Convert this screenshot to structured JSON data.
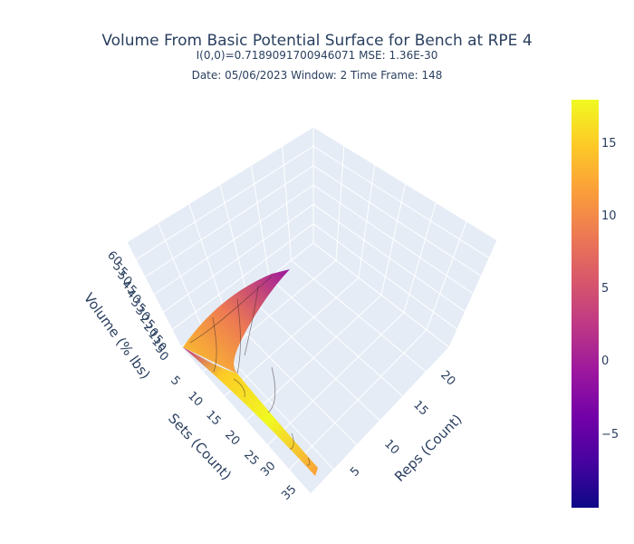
{
  "chart_data": {
    "type": "surface",
    "title": "Volume From Basic Potential Surface for Bench at RPE 4",
    "subtitle_line1": "I(0,0)=0.7189091700946071  MSE: 1.36E-30",
    "subtitle_line2": "Date: 05/06/2023  Window: 2  Time Frame: 148",
    "axes": {
      "x": {
        "label": "Sets (Count)",
        "tick_labels": [
          "5",
          "10",
          "15",
          "20",
          "25",
          "30",
          "35"
        ]
      },
      "y": {
        "label": "Reps (Count)",
        "tick_labels": [
          "5",
          "10",
          "15",
          "20"
        ]
      },
      "z": {
        "label": "Volume (% lbs)",
        "tick_labels": [
          "60",
          "55",
          "50",
          "45",
          "40",
          "35",
          "30",
          "25",
          "20",
          "15",
          "10",
          "5",
          "0"
        ]
      }
    },
    "colorbar": {
      "colorscale": "Plasma",
      "tick_labels": [
        "15",
        "10",
        "5",
        "0",
        "−5"
      ],
      "colors": [
        "#0d0887",
        "#46039f",
        "#7201a8",
        "#9c179e",
        "#bd3786",
        "#d8576b",
        "#ed7953",
        "#fb9f3a",
        "#fdca26",
        "#f0f921"
      ]
    },
    "background": "#e5ecf6",
    "grid": true
  }
}
